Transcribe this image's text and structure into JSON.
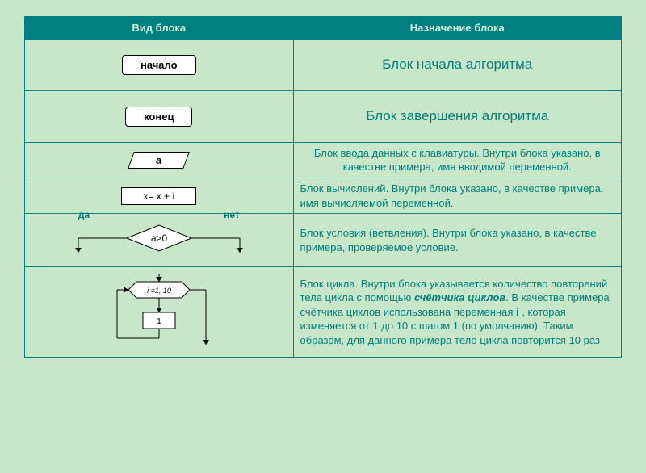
{
  "headers": {
    "col1": "Вид блока",
    "col2": "Назначение блока"
  },
  "rows": {
    "start": {
      "shape_label": "начало",
      "desc": "Блок начала алгоритма"
    },
    "end": {
      "shape_label": "конец",
      "desc": "Блок завершения алгоритма"
    },
    "input": {
      "shape_label": "a",
      "desc": "Блок ввода данных с клавиатуры. Внутри блока указано, в качестве примера, имя вводимой переменной."
    },
    "process": {
      "shape_label": "x= x + i",
      "desc": "Блок вычислений. Внутри блока указано, в качестве примера, имя вычисляемой переменной."
    },
    "decision": {
      "shape_label": "a>0",
      "yes": "да",
      "no": "нет",
      "desc": "Блок условия (ветвления). Внутри блока указано, в качестве примера, проверяемое условие."
    },
    "loop": {
      "shape_label": "i =1, 10",
      "body": "1",
      "desc_html": "Блок цикла. Внутри блока указывается количество повторений тела цикла с помощью <b><i>счётчика циклов</i></b>. В качестве примера счётчика циклов использована переменная <b>i</b> , которая изменяется от 1 до 10 с шагом 1 (по умолчанию). Таким образом, для данного примера тело цикла повторится 10 раз"
    }
  },
  "styling": {
    "page_bg": "#c8e6c8",
    "header_bg": "#008080",
    "header_text": "#d4edda",
    "border_color": "#008080",
    "desc_color": "#008080",
    "shape_fill": "#ffffff",
    "shape_stroke": "#000000",
    "font_family": "Arial, sans-serif",
    "header_font_size": 13,
    "desc_font_size": 13,
    "big_desc_font_size": 17,
    "col_widths_pct": [
      45,
      55
    ]
  }
}
